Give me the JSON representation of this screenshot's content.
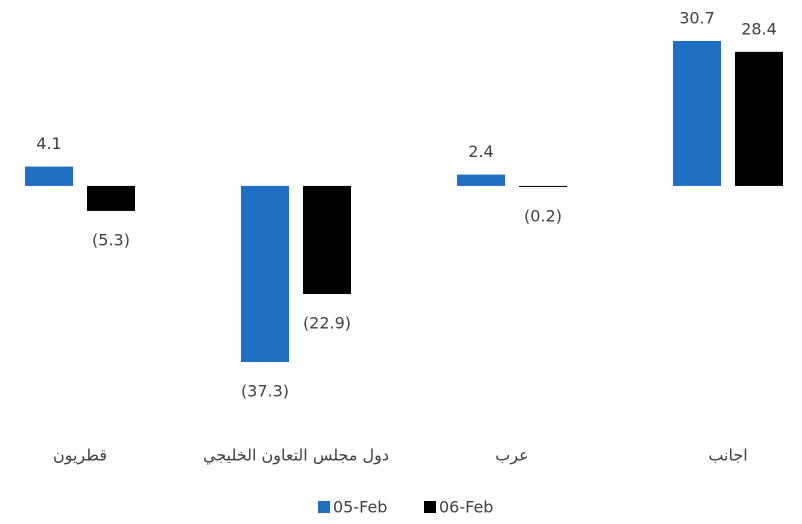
{
  "chart_data": {
    "type": "bar",
    "categories": [
      "قطريون",
      "دول مجلس التعاون الخليجي",
      "عرب",
      "اجانب"
    ],
    "series": [
      {
        "name": "05-Feb",
        "color": "#1f6fc5",
        "values": [
          4.1,
          -37.3,
          2.4,
          30.7
        ],
        "value_labels": [
          "4.1",
          "(37.3)",
          "2.4",
          "30.7"
        ]
      },
      {
        "name": "06-Feb",
        "color": "#000000",
        "values": [
          -5.3,
          -22.9,
          -0.2,
          28.4
        ],
        "value_labels": [
          "(5.3)",
          "(22.9)",
          "(0.2)",
          "28.4"
        ]
      }
    ],
    "legend": "bottom"
  }
}
